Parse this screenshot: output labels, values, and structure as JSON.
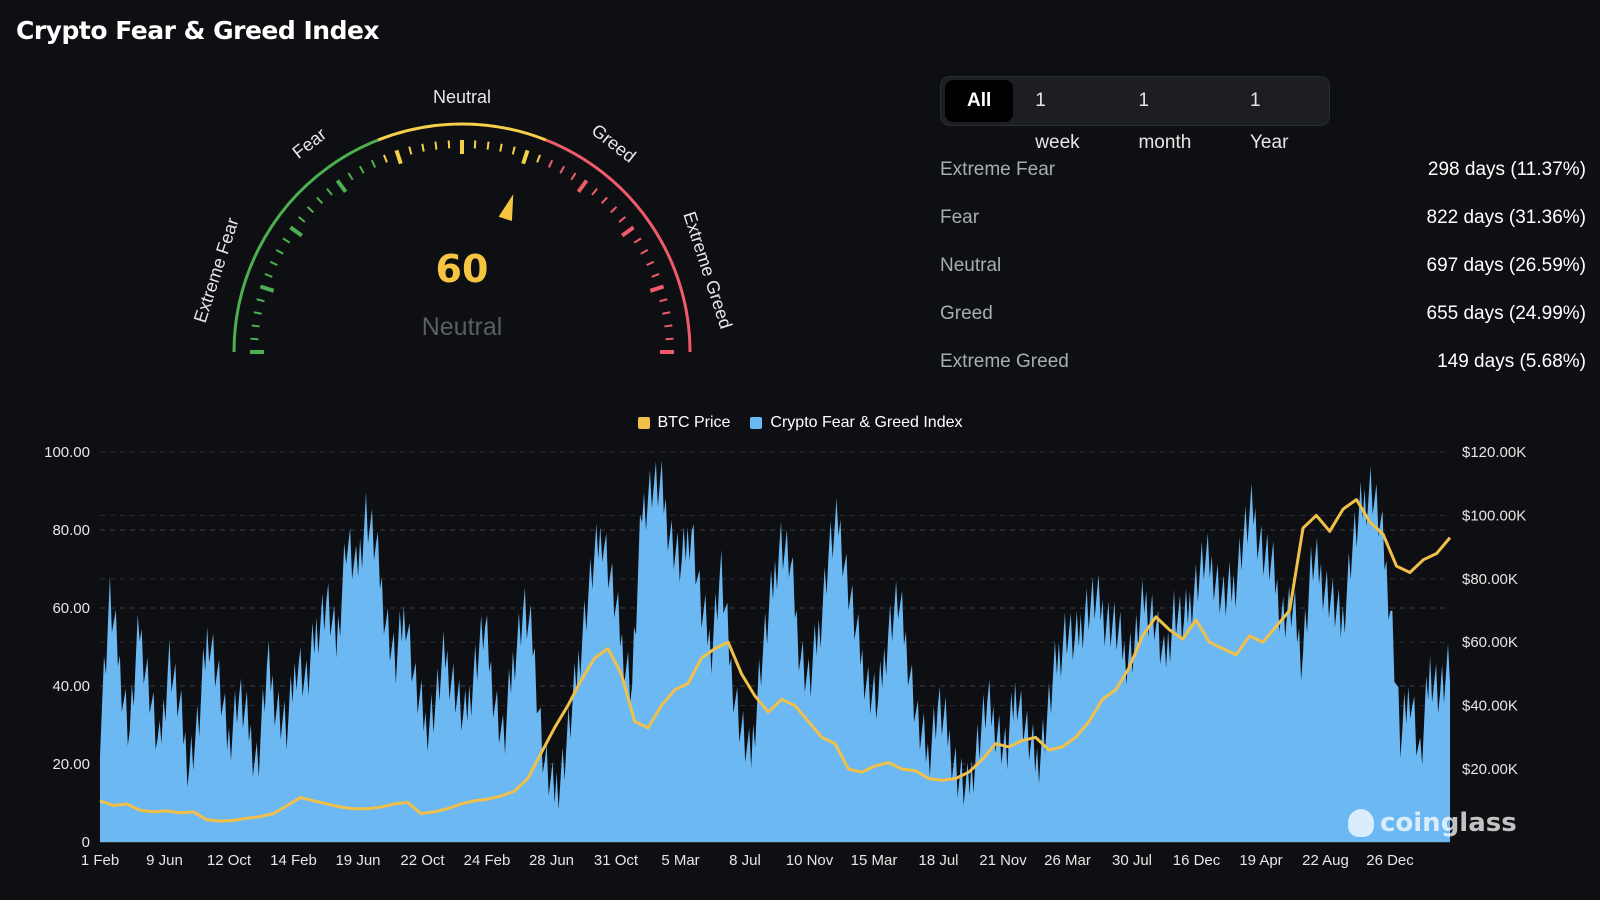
{
  "page": {
    "title": "Crypto Fear & Greed Index"
  },
  "gauge": {
    "value": 60,
    "value_label": "60",
    "status": "Neutral",
    "labels": {
      "extreme_fear": "Extreme Fear",
      "fear": "Fear",
      "neutral": "Neutral",
      "greed": "Greed",
      "extreme_greed": "Extreme Greed"
    },
    "colors": {
      "value": "#f5c542",
      "status": "#5a5d66",
      "green": "#4caf50",
      "yellow": "#f5d04a",
      "red": "#ef5b6b"
    }
  },
  "tabs": [
    {
      "label": "All",
      "active": true
    },
    {
      "label": "1 week",
      "active": false
    },
    {
      "label": "1 month",
      "active": false
    },
    {
      "label": "1 Year",
      "active": false
    }
  ],
  "stats": [
    {
      "label": "Extreme Fear",
      "value": "298 days (11.37%)"
    },
    {
      "label": "Fear",
      "value": "822 days (31.36%)"
    },
    {
      "label": "Neutral",
      "value": "697 days (26.59%)"
    },
    {
      "label": "Greed",
      "value": "655 days (24.99%)"
    },
    {
      "label": "Extreme Greed",
      "value": "149 days (5.68%)"
    }
  ],
  "watermark": "coinglass",
  "chart_data": {
    "type": "area",
    "legend": [
      {
        "name": "BTC Price",
        "color": "#f0c04a"
      },
      {
        "name": "Crypto Fear & Greed Index",
        "color": "#6cb8f2"
      }
    ],
    "x_ticks": [
      "1 Feb",
      "9 Jun",
      "12 Oct",
      "14 Feb",
      "19 Jun",
      "22 Oct",
      "24 Feb",
      "28 Jun",
      "31 Oct",
      "5 Mar",
      "8 Jul",
      "10 Nov",
      "15 Mar",
      "18 Jul",
      "21 Nov",
      "26 Mar",
      "30 Jul",
      "16 Dec",
      "19 Apr",
      "22 Aug",
      "26 Dec"
    ],
    "y_left": {
      "ticks": [
        "0",
        "20.00",
        "40.00",
        "60.00",
        "80.00",
        "100.00"
      ],
      "range": [
        0,
        100
      ]
    },
    "y_right": {
      "ticks": [
        "$20.00K",
        "$40.00K",
        "$60.00K",
        "$80.00K",
        "$100.00K",
        "$120.00K"
      ],
      "range": [
        -3000,
        120000
      ]
    },
    "series": [
      {
        "name": "Crypto Fear & Greed Index",
        "color": "#6cb8f2",
        "values": [
          30,
          62,
          45,
          28,
          55,
          40,
          22,
          48,
          35,
          20,
          30,
          55,
          42,
          25,
          38,
          30,
          20,
          45,
          35,
          28,
          48,
          40,
          55,
          62,
          50,
          78,
          68,
          85,
          75,
          58,
          45,
          60,
          40,
          30,
          35,
          48,
          40,
          30,
          45,
          55,
          38,
          25,
          48,
          60,
          50,
          22,
          12,
          20,
          35,
          55,
          70,
          80,
          65,
          50,
          40,
          85,
          92,
          90,
          78,
          70,
          82,
          60,
          50,
          70,
          45,
          30,
          20,
          45,
          60,
          78,
          72,
          50,
          40,
          55,
          75,
          82,
          65,
          50,
          40,
          35,
          55,
          62,
          48,
          30,
          22,
          35,
          28,
          18,
          12,
          25,
          35,
          30,
          22,
          40,
          28,
          20,
          30,
          45,
          55,
          50,
          60,
          62,
          58,
          55,
          48,
          50,
          62,
          58,
          45,
          60,
          55,
          65,
          72,
          70,
          62,
          65,
          78,
          85,
          75,
          70,
          58,
          60,
          48,
          72,
          68,
          62,
          55,
          75,
          85,
          92,
          80,
          60,
          25,
          40,
          20,
          45,
          38,
          44
        ]
      },
      {
        "name": "BTC Price",
        "color": "#f0c04a",
        "values": [
          10000,
          8500,
          9000,
          7000,
          6500,
          6800,
          6200,
          6500,
          4000,
          3600,
          3800,
          4500,
          5000,
          6000,
          8500,
          11000,
          10000,
          9000,
          8000,
          7500,
          7500,
          8000,
          9000,
          9500,
          6000,
          6500,
          7500,
          9000,
          10000,
          10500,
          11500,
          13000,
          17000,
          25000,
          33000,
          40000,
          48000,
          55000,
          58000,
          50000,
          35000,
          33000,
          40000,
          45000,
          47000,
          55000,
          58000,
          60000,
          50000,
          43000,
          38000,
          42000,
          40000,
          35000,
          30000,
          28000,
          20000,
          19000,
          21000,
          22000,
          20000,
          19500,
          17000,
          16500,
          17000,
          19000,
          23000,
          28000,
          27000,
          29000,
          30000,
          26000,
          27000,
          30000,
          35000,
          42000,
          45000,
          52000,
          62000,
          68000,
          64000,
          61000,
          67000,
          60000,
          58000,
          56000,
          62000,
          60000,
          65000,
          70000,
          96000,
          100000,
          95000,
          102000,
          105000,
          98000,
          94000,
          84000,
          82000,
          86000,
          88000,
          93000
        ]
      }
    ]
  }
}
